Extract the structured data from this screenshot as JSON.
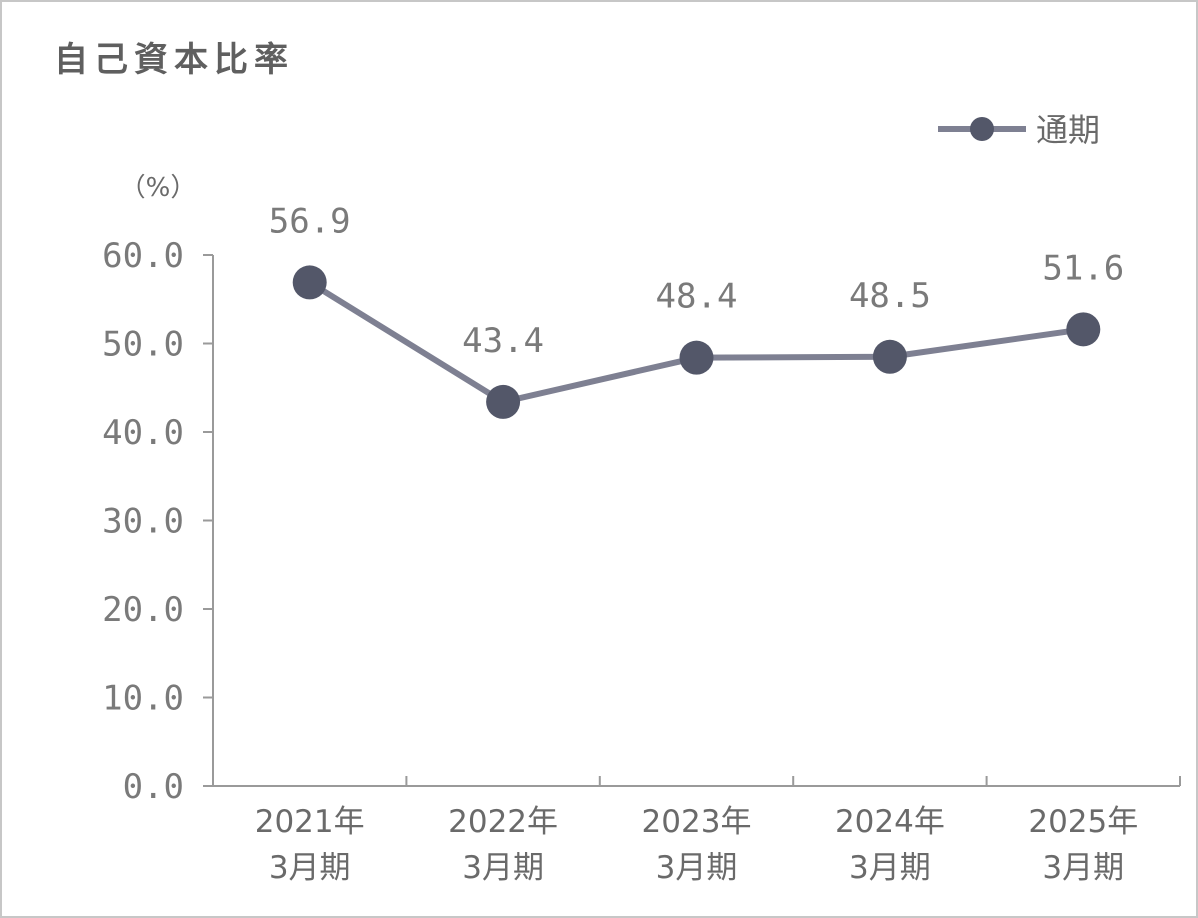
{
  "chart_data": {
    "type": "line",
    "title": "自己資本比率",
    "ylabel": "（%）",
    "ylim": [
      0,
      60
    ],
    "yticks": [
      "60.0",
      "50.0",
      "40.0",
      "30.0",
      "20.0",
      "10.0",
      "0.0"
    ],
    "ytick_values": [
      60,
      50,
      40,
      30,
      20,
      10,
      0
    ],
    "categories": [
      [
        "2021年",
        "3月期"
      ],
      [
        "2022年",
        "3月期"
      ],
      [
        "2023年",
        "3月期"
      ],
      [
        "2024年",
        "3月期"
      ],
      [
        "2025年",
        "3月期"
      ]
    ],
    "series": [
      {
        "name": "通期",
        "values": [
          56.9,
          43.4,
          48.4,
          48.5,
          51.6
        ],
        "labels": [
          "56.9",
          "43.4",
          "48.4",
          "48.5",
          "51.6"
        ],
        "line_color": "#7e8092",
        "marker_color": "#535769"
      }
    ],
    "legend": {
      "position": "top-right",
      "label": "通期"
    },
    "grid": false
  }
}
